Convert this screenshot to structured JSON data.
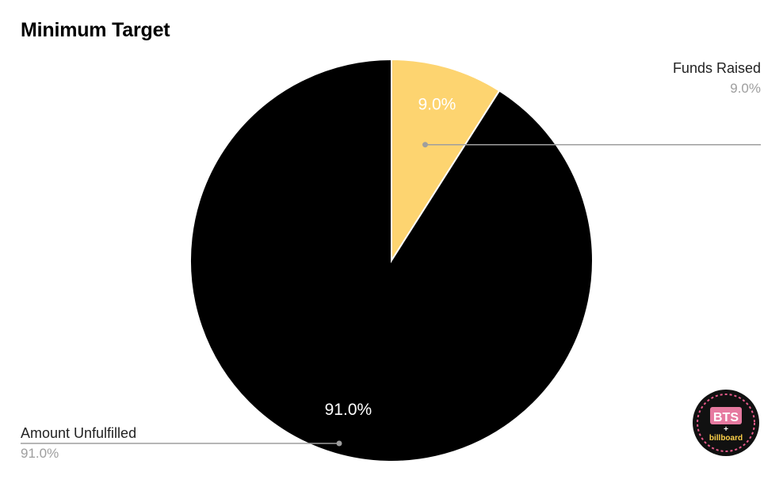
{
  "chart_data": {
    "type": "pie",
    "title": "Minimum Target",
    "slices": [
      {
        "label": "Funds Raised",
        "value": 9.0,
        "display": "9.0%",
        "color": "#fdd470"
      },
      {
        "label": "Amount Unfulfilled",
        "value": 91.0,
        "display": "91.0%",
        "color": "#000000"
      }
    ],
    "legend_placement": "outside-leader-lines"
  },
  "logo": {
    "text_top": "BTS",
    "text_join": "+",
    "text_bottom": "billboard"
  }
}
